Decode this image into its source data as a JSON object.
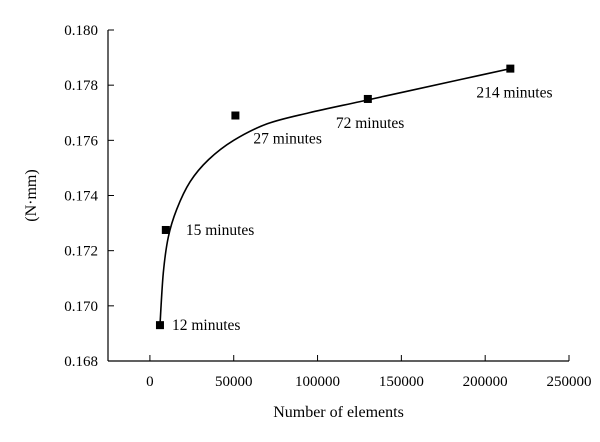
{
  "chart_data": {
    "type": "scatter",
    "xlabel": "Number of elements",
    "ylabel": "(N·mm)",
    "xlim": [
      -25000,
      250000
    ],
    "ylim": [
      0.168,
      0.18
    ],
    "x_ticks": [
      0,
      50000,
      100000,
      150000,
      200000,
      250000
    ],
    "y_ticks": [
      0.168,
      0.17,
      0.172,
      0.174,
      0.176,
      0.178,
      0.18
    ],
    "x_tick_labels": [
      "0",
      "50000",
      "100000",
      "150000",
      "200000",
      "250000"
    ],
    "y_tick_labels": [
      "0.168",
      "0.170",
      "0.172",
      "0.174",
      "0.176",
      "0.178",
      "0.180"
    ],
    "grid": false,
    "points": [
      {
        "x": 6000,
        "y": 0.1693,
        "label": "12 minutes"
      },
      {
        "x": 9500,
        "y": 0.17275,
        "label": "15 minutes"
      },
      {
        "x": 51000,
        "y": 0.1769,
        "label": "27 minutes"
      },
      {
        "x": 130000,
        "y": 0.1775,
        "label": "72 minutes"
      },
      {
        "x": 215000,
        "y": 0.1786,
        "label": "214 minutes"
      }
    ],
    "fit_curve": {
      "x": [
        6000,
        8000,
        11000,
        16000,
        24000,
        35000,
        50000,
        70000,
        95000,
        125000,
        155000,
        185000,
        215000
      ],
      "y": [
        0.1693,
        0.1712,
        0.1725,
        0.1735,
        0.1745,
        0.1753,
        0.176,
        0.1766,
        0.177,
        0.1774,
        0.1778,
        0.1782,
        0.1786
      ]
    }
  }
}
